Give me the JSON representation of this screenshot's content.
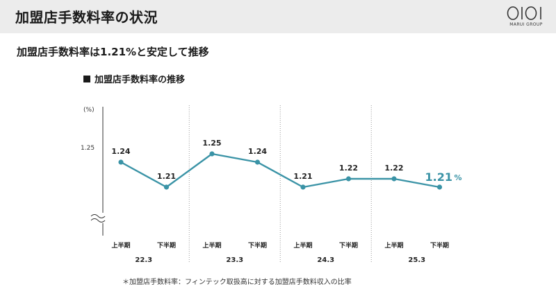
{
  "page": {
    "title": "加盟店手数料率の状況",
    "subtitle": "加盟店手数料率は1.21%と安定して推移",
    "footnote": "＊加盟店手数料率：フィンテック取扱高に対する加盟店手数料収入の比率"
  },
  "logo": {
    "mark": "OIOI",
    "caption": "MARUI GROUP"
  },
  "colors": {
    "line": "#3a93a6",
    "highlight": "#3a93a6",
    "axis": "#333333",
    "divider": "#999999"
  },
  "chart_data": {
    "type": "line",
    "title": "加盟店手数料率の推移",
    "unit_label": "(%)",
    "y_tick_labels": [
      "1.25"
    ],
    "y_ticks": [
      1.25
    ],
    "ylim": [
      1.1,
      1.3
    ],
    "y_axis_break": true,
    "categories": [
      "上半期",
      "下半期",
      "上半期",
      "下半期",
      "上半期",
      "下半期",
      "上半期",
      "下半期"
    ],
    "groups": [
      "22.3",
      "23.3",
      "24.3",
      "25.3"
    ],
    "series": [
      {
        "values": [
          1.24,
          1.21,
          1.25,
          1.24,
          1.21,
          1.22,
          1.22,
          1.21
        ]
      }
    ],
    "data_labels": [
      "1.24",
      "1.21",
      "1.25",
      "1.24",
      "1.21",
      "1.22",
      "1.22",
      "1.21"
    ],
    "highlight_index": 7,
    "highlight_unit": "%",
    "group_dividers": "dotted",
    "grid": false,
    "legend": "none"
  }
}
